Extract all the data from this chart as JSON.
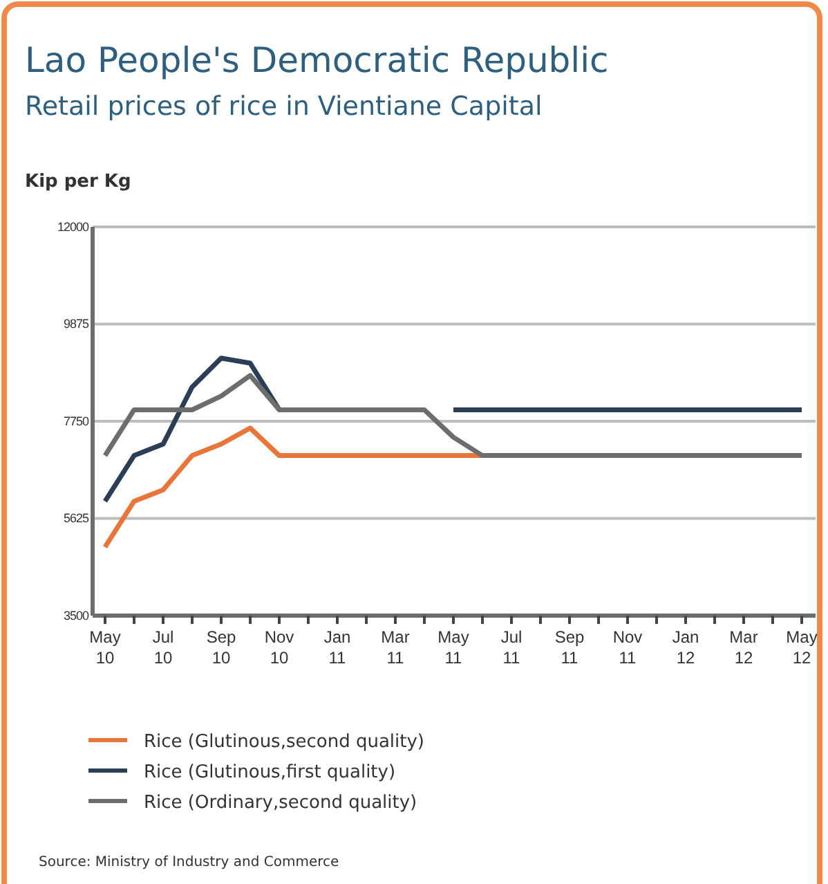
{
  "chart_data": {
    "type": "line",
    "title": "Lao People's Democratic Republic",
    "subtitle": "Retail prices of rice in Vientiane Capital",
    "ylabel": "Kip per Kg",
    "categories": [
      "May 10",
      null,
      "Jul 10",
      null,
      "Sep 10",
      null,
      "Nov 10",
      null,
      "Jan 11",
      null,
      "Mar 11",
      null,
      "May 11",
      null,
      "Jul 11",
      null,
      "Sep 11",
      null,
      "Nov 11",
      null,
      "Jan 12",
      null,
      "Mar 12",
      null,
      "May 12"
    ],
    "series": [
      {
        "name": "Rice (Glutinous,second quality)",
        "color": "#e8763a",
        "values": [
          5000,
          6000,
          6250,
          7000,
          7250,
          7600,
          7000,
          7000,
          7000,
          7000,
          7000,
          7000,
          7000,
          7000,
          null,
          null,
          null,
          null,
          null,
          null,
          null,
          null,
          null,
          null,
          null
        ]
      },
      {
        "name": "Rice (Glutinous,first quality)",
        "color": "#2a3f55",
        "values": [
          6000,
          7000,
          7250,
          8500,
          9130,
          9020,
          8000,
          null,
          null,
          null,
          null,
          null,
          8000,
          8000,
          8000,
          8000,
          8000,
          8000,
          8000,
          8000,
          8000,
          8000,
          8000,
          8000,
          8000
        ]
      },
      {
        "name": "Rice (Ordinary,second quality)",
        "color": "#6d6d6d",
        "values": [
          7000,
          8000,
          8000,
          8000,
          8300,
          8750,
          8000,
          8000,
          8000,
          8000,
          8000,
          8000,
          7400,
          7000,
          7000,
          7000,
          7000,
          7000,
          7000,
          7000,
          7000,
          7000,
          7000,
          7000,
          7000
        ]
      }
    ],
    "ylim": [
      3500,
      12000
    ],
    "yticks": [
      3500,
      5625,
      7750,
      9875,
      12000
    ],
    "grid": "y",
    "legend": "bottom",
    "line_style": "solid",
    "annotations": [
      "Source: Ministry of Industry and Commerce"
    ]
  }
}
